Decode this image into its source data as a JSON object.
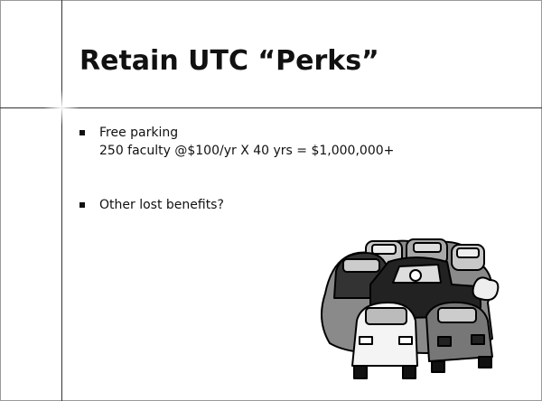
{
  "slide": {
    "title": "Retain UTC “Perks”",
    "bullets": [
      [
        "Free parking",
        "250 faculty @$100/yr X 40 yrs = $1,000,000+"
      ],
      [
        "Other lost benefits?"
      ]
    ]
  }
}
